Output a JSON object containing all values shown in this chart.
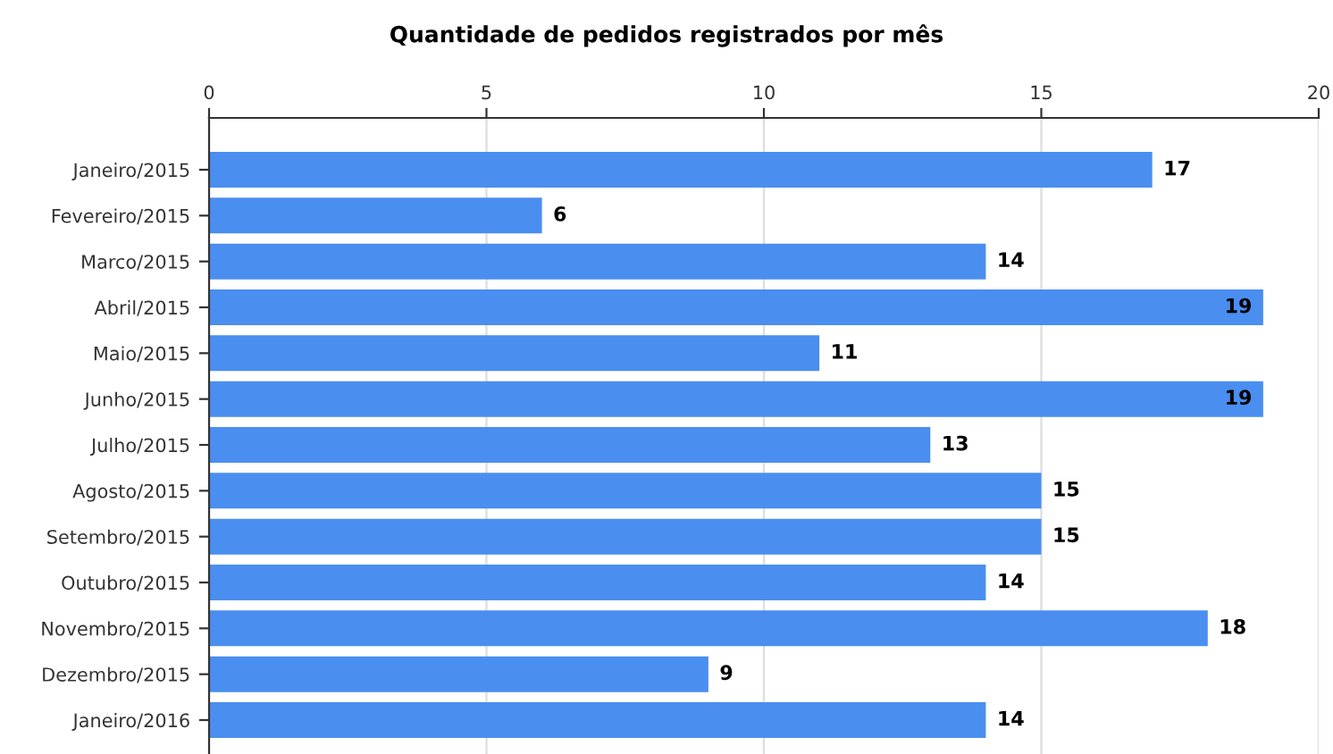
{
  "chart_data": {
    "type": "bar",
    "orientation": "horizontal",
    "title": "Quantidade de pedidos registrados por mês",
    "categories": [
      "Janeiro/2015",
      "Fevereiro/2015",
      "Marco/2015",
      "Abril/2015",
      "Maio/2015",
      "Junho/2015",
      "Julho/2015",
      "Agosto/2015",
      "Setembro/2015",
      "Outubro/2015",
      "Novembro/2015",
      "Dezembro/2015",
      "Janeiro/2016"
    ],
    "values": [
      17,
      6,
      14,
      19,
      11,
      19,
      13,
      15,
      15,
      14,
      18,
      9,
      14
    ],
    "color": "#4a8ef0",
    "xlim": [
      0,
      20
    ],
    "xticks": [
      0,
      5,
      10,
      15,
      20
    ],
    "grid": "x",
    "data_labels": true,
    "legend": false
  }
}
